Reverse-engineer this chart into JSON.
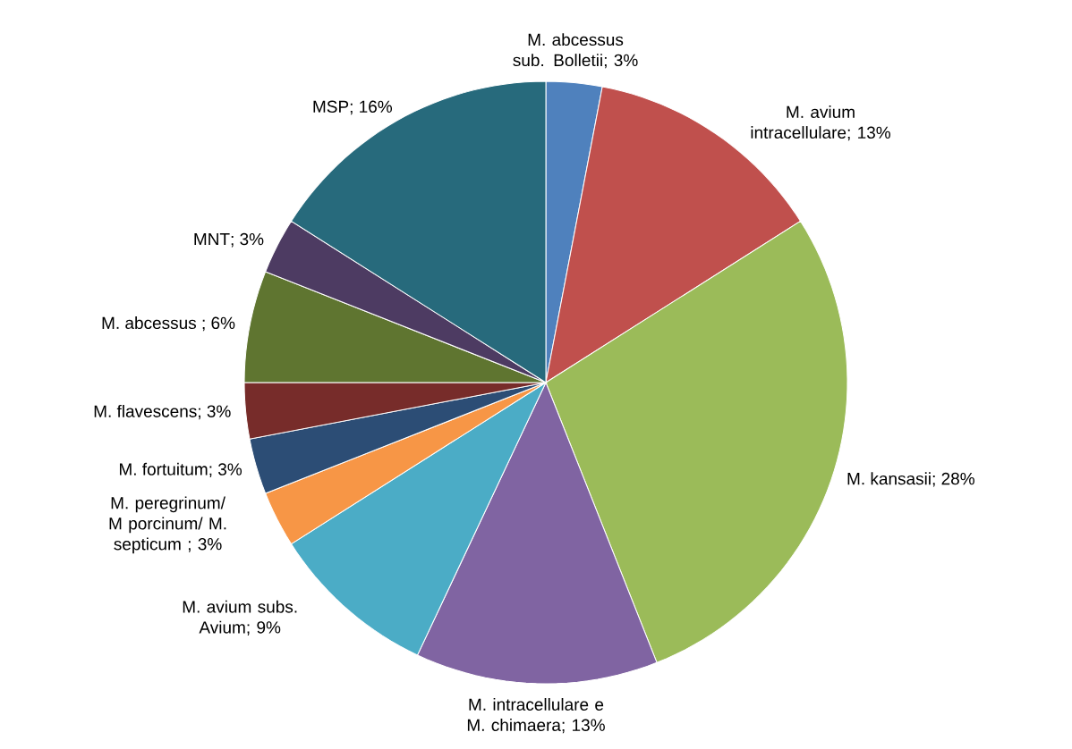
{
  "chart_data": {
    "type": "pie",
    "categories": [
      "M. abcessus sub. Bolletii",
      "M. avium intracellulare",
      "M. kansasii",
      "M. intracellulare e M. chimaera",
      "M. avium subs. Avium",
      "M. peregrinum/ M porcinum/ M. septicum ",
      "M. fortuitum",
      "M. flavescens",
      "M. abcessus ",
      "MNT",
      "MSP"
    ],
    "values": [
      3,
      13,
      28,
      13,
      9,
      3,
      3,
      3,
      6,
      3,
      16
    ],
    "value_labels": [
      "; 3%",
      "; 13%",
      "; 28%",
      "; 13%",
      "; 9%",
      "; 3%",
      "; 3%",
      "; 3%",
      "; 6%",
      "; 3%",
      "; 16%"
    ],
    "colors": [
      "#4f81bd",
      "#c0504d",
      "#9bbb59",
      "#8064a2",
      "#4bacc6",
      "#f79646",
      "#2c4d75",
      "#772c2a",
      "#5f7530",
      "#4d3b62",
      "#276a7c"
    ],
    "legend": false
  }
}
